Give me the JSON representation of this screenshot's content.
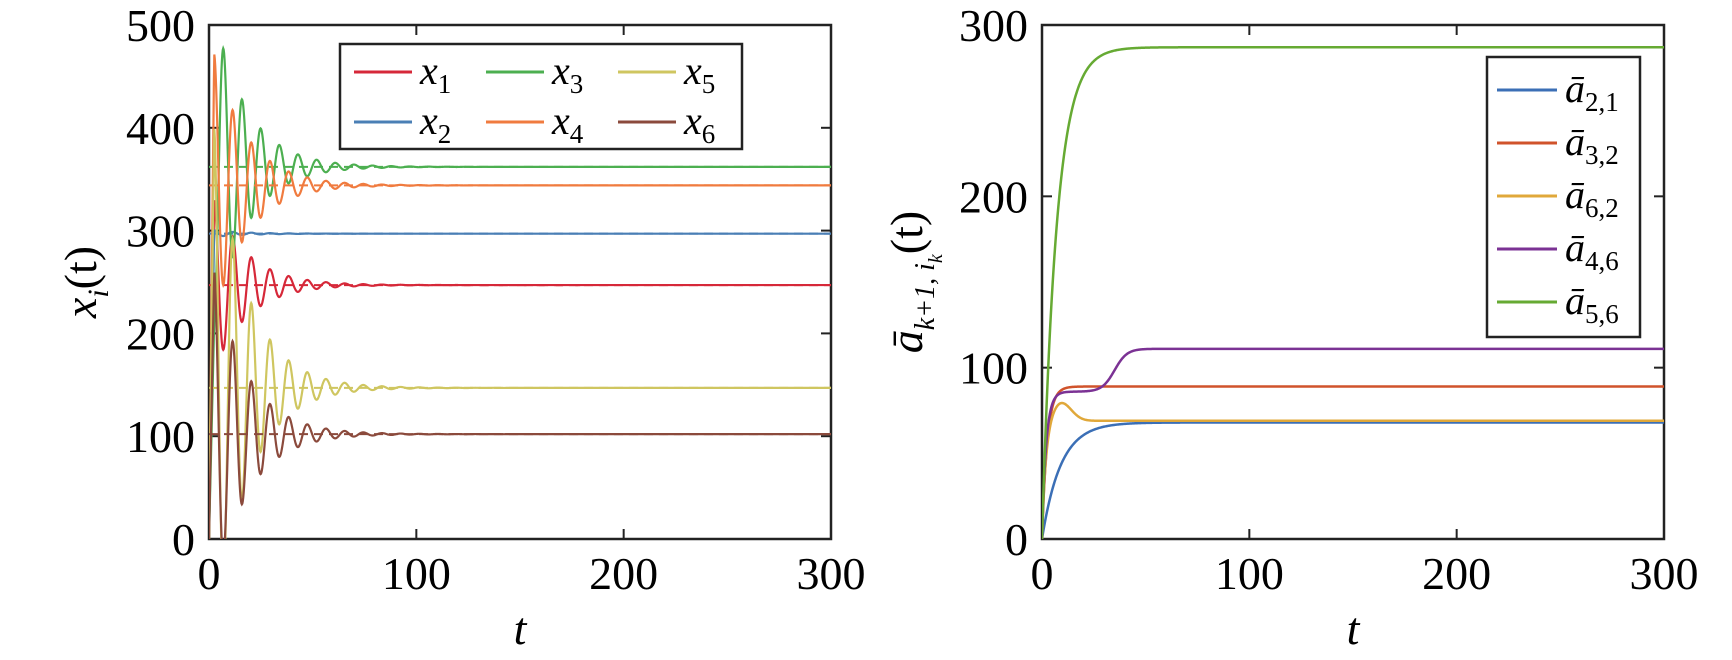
{
  "chart_data": [
    {
      "type": "line",
      "xlabel": "t",
      "ylabel": {
        "main": "x",
        "sub": "i",
        "arg": "(t)"
      },
      "xlim": [
        0,
        300
      ],
      "ylim": [
        0,
        500
      ],
      "xticks": [
        0,
        100,
        200,
        300
      ],
      "xtick_labels": [
        "0",
        "100",
        "200",
        "300"
      ],
      "yticks": [
        0,
        100,
        200,
        300,
        400,
        500
      ],
      "ytick_labels": [
        "0",
        "100",
        "200",
        "300",
        "400",
        "500"
      ],
      "grid": false,
      "legend": {
        "placement": "top-right",
        "columns": 3
      },
      "dashed_reference_lines": true,
      "series": [
        {
          "name": "x",
          "sub": "1",
          "color": "#d62839",
          "final": 247,
          "start": 0,
          "peak": 330,
          "period": 9,
          "decay": 16
        },
        {
          "name": "x",
          "sub": "2",
          "color": "#4a7fb5",
          "final": 297,
          "start": 0,
          "peak": 300,
          "period": 9,
          "decay": 16
        },
        {
          "name": "x",
          "sub": "3",
          "color": "#4caf50",
          "final": 362,
          "start": 0,
          "peak": 210,
          "period": 9,
          "decay": 16
        },
        {
          "name": "x",
          "sub": "4",
          "color": "#f07b3f",
          "final": 344,
          "start": 0,
          "peak": 472,
          "period": 9,
          "decay": 16
        },
        {
          "name": "x",
          "sub": "5",
          "color": "#cfc660",
          "final": 147,
          "start": 0,
          "peak": 400,
          "period": 9,
          "decay": 16
        },
        {
          "name": "x",
          "sub": "6",
          "color": "#8b4a3c",
          "final": 102,
          "start": 0,
          "peak": 260,
          "period": 9,
          "decay": 16
        }
      ]
    },
    {
      "type": "line",
      "xlabel": "t",
      "ylabel": {
        "main": "ā",
        "sub": "k+1, i",
        "subsub": "k",
        "arg": "(t)"
      },
      "xlim": [
        0,
        300
      ],
      "ylim": [
        0,
        300
      ],
      "xticks": [
        0,
        100,
        200,
        300
      ],
      "xtick_labels": [
        "0",
        "100",
        "200",
        "300"
      ],
      "yticks": [
        0,
        100,
        200,
        300
      ],
      "ytick_labels": [
        "0",
        "100",
        "200",
        "300"
      ],
      "grid": false,
      "legend": {
        "placement": "top-right",
        "columns": 1
      },
      "series": [
        {
          "name": "ā",
          "sub": "2,1",
          "color": "#3b6fb6",
          "final": 68,
          "tau": 9,
          "bump": null
        },
        {
          "name": "ā",
          "sub": "3,2",
          "color": "#d0532b",
          "final": 89,
          "tau": 2.5,
          "bump": null
        },
        {
          "name": "ā",
          "sub": "6,2",
          "color": "#e0a83a",
          "final": 69,
          "tau": 2,
          "bump": {
            "t": 9,
            "v": 80
          }
        },
        {
          "name": "ā",
          "sub": "4,6",
          "color": "#7b3294",
          "final": 111,
          "tau": 2,
          "step": {
            "v1": 86,
            "t": 35,
            "w": 12
          }
        },
        {
          "name": "ā",
          "sub": "5,6",
          "color": "#66aa33",
          "final": 287,
          "tau": 7,
          "bump": null
        }
      ]
    }
  ]
}
